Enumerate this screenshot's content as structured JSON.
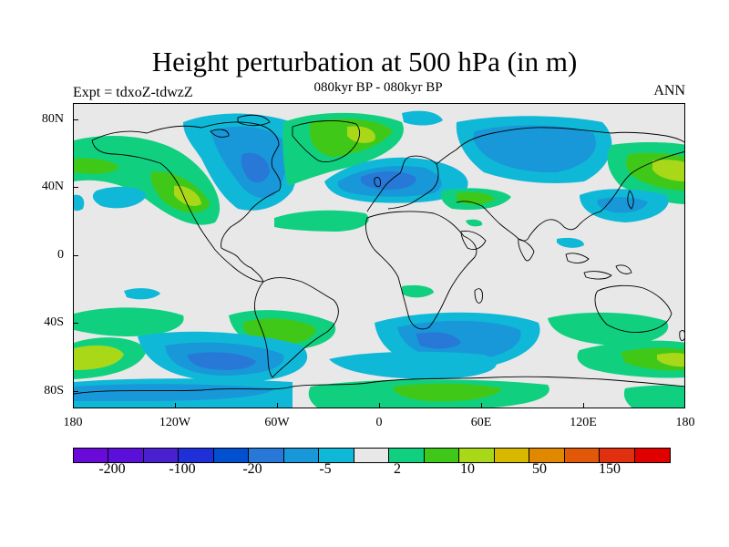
{
  "title": "Height perturbation at 500 hPa (in m)",
  "subtitle": "080kyr BP - 080kyr BP",
  "left_string": "Expt = tdxoZ-tdwzZ",
  "right_string": "ANN",
  "map": {
    "lat_labels": [
      "80N",
      "40N",
      "0",
      "40S",
      "80S"
    ],
    "lon_labels": [
      "180",
      "120W",
      "60W",
      "0",
      "60E",
      "120E",
      "180"
    ],
    "background_color": "#e8e8e8",
    "coastline_color": "#000000"
  },
  "colorbar": {
    "colors": [
      "#6a0ad8",
      "#5a10d8",
      "#4820d0",
      "#2030d8",
      "#0050d0",
      "#2878d8",
      "#1898d8",
      "#10b8d8",
      "#e8e8e8",
      "#10d080",
      "#40c818",
      "#a8d818",
      "#d8b800",
      "#e08800",
      "#e05808",
      "#e03010",
      "#e00000"
    ],
    "labels": [
      "-200",
      "-100",
      "-20",
      "-5",
      "2",
      "10",
      "50",
      "150"
    ]
  },
  "chart_data": {
    "type": "heatmap",
    "title": "Height perturbation at 500 hPa (in m)",
    "subtitle": "080kyr BP - 080kyr BP",
    "projection": "cylindrical-equidistant",
    "x_range": [
      -180,
      180
    ],
    "y_range": [
      -90,
      90
    ],
    "contour_levels": [
      -200,
      -100,
      -20,
      -5,
      2,
      10,
      50,
      150
    ],
    "features": [
      {
        "lon": -60,
        "lat": 60,
        "value": -8
      },
      {
        "lon": -130,
        "lat": 35,
        "value": 6
      },
      {
        "lon": -160,
        "lat": 30,
        "value": -8
      },
      {
        "lon": -30,
        "lat": 70,
        "value": 8
      },
      {
        "lon": 20,
        "lat": 45,
        "value": -8
      },
      {
        "lon": 100,
        "lat": 65,
        "value": -8
      },
      {
        "lon": 165,
        "lat": 45,
        "value": 12
      },
      {
        "lon": 140,
        "lat": 30,
        "value": -8
      },
      {
        "lon": -55,
        "lat": 20,
        "value": 4
      },
      {
        "lon": 45,
        "lat": -48,
        "value": -8
      },
      {
        "lon": -80,
        "lat": -63,
        "value": -8
      },
      {
        "lon": -170,
        "lat": -55,
        "value": 12
      },
      {
        "lon": -60,
        "lat": -42,
        "value": 6
      },
      {
        "lon": 120,
        "lat": -40,
        "value": 5
      },
      {
        "lon": 30,
        "lat": -80,
        "value": 5
      },
      {
        "lon": 170,
        "lat": -60,
        "value": 8
      }
    ]
  }
}
